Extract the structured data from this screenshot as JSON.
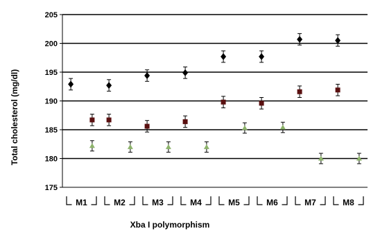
{
  "chart_data": {
    "type": "scatter",
    "title": "",
    "xlabel": "Xba I polymorphism",
    "ylabel": "Total cholesterol (mg/dl)",
    "ylim": [
      175,
      205
    ],
    "yticks": [
      175,
      180,
      185,
      190,
      195,
      200,
      205
    ],
    "grid": true,
    "legend": "none",
    "groups": [
      "M1",
      "M2",
      "M3",
      "M4",
      "M5",
      "M6",
      "M7",
      "M8"
    ],
    "series": [
      {
        "marker": "diamond",
        "color": "#000000",
        "points": [
          {
            "group": "M1",
            "pos": 0,
            "y": 192.9,
            "err": 1.0
          },
          {
            "group": "M2",
            "pos": 0,
            "y": 192.7,
            "err": 1.0
          },
          {
            "group": "M3",
            "pos": 0,
            "y": 194.4,
            "err": 1.0
          },
          {
            "group": "M4",
            "pos": 0,
            "y": 194.9,
            "err": 1.0
          },
          {
            "group": "M5",
            "pos": 0,
            "y": 197.7,
            "err": 1.0
          },
          {
            "group": "M6",
            "pos": 0,
            "y": 197.7,
            "err": 1.0
          },
          {
            "group": "M7",
            "pos": 0,
            "y": 200.7,
            "err": 1.0
          },
          {
            "group": "M8",
            "pos": 0,
            "y": 200.5,
            "err": 1.0
          }
        ]
      },
      {
        "marker": "square",
        "color": "#5a1010",
        "points": [
          {
            "group": "M1",
            "pos": 1,
            "y": 186.7,
            "err": 1.0
          },
          {
            "group": "M2",
            "pos": 0,
            "y": 186.7,
            "err": 1.0
          },
          {
            "group": "M3",
            "pos": 0,
            "y": 185.6,
            "err": 1.0
          },
          {
            "group": "M4",
            "pos": 0,
            "y": 186.4,
            "err": 1.0
          },
          {
            "group": "M5",
            "pos": 0,
            "y": 189.8,
            "err": 1.0
          },
          {
            "group": "M6",
            "pos": 0,
            "y": 189.6,
            "err": 1.0
          },
          {
            "group": "M7",
            "pos": 0,
            "y": 191.6,
            "err": 1.0
          },
          {
            "group": "M8",
            "pos": 0,
            "y": 191.9,
            "err": 1.0
          }
        ]
      },
      {
        "marker": "triangle",
        "color": "#8db36b",
        "points": [
          {
            "group": "M1",
            "pos": 1,
            "y": 182.2,
            "err": 0.9
          },
          {
            "group": "M2",
            "pos": 1,
            "y": 182.0,
            "err": 0.9
          },
          {
            "group": "M3",
            "pos": 1,
            "y": 182.0,
            "err": 0.9
          },
          {
            "group": "M4",
            "pos": 1,
            "y": 182.0,
            "err": 0.9
          },
          {
            "group": "M5",
            "pos": 1,
            "y": 185.3,
            "err": 0.9
          },
          {
            "group": "M6",
            "pos": 1,
            "y": 185.4,
            "err": 0.9
          },
          {
            "group": "M7",
            "pos": 1,
            "y": 180.0,
            "err": 0.9
          },
          {
            "group": "M8",
            "pos": 1,
            "y": 180.0,
            "err": 0.9
          }
        ]
      }
    ]
  }
}
